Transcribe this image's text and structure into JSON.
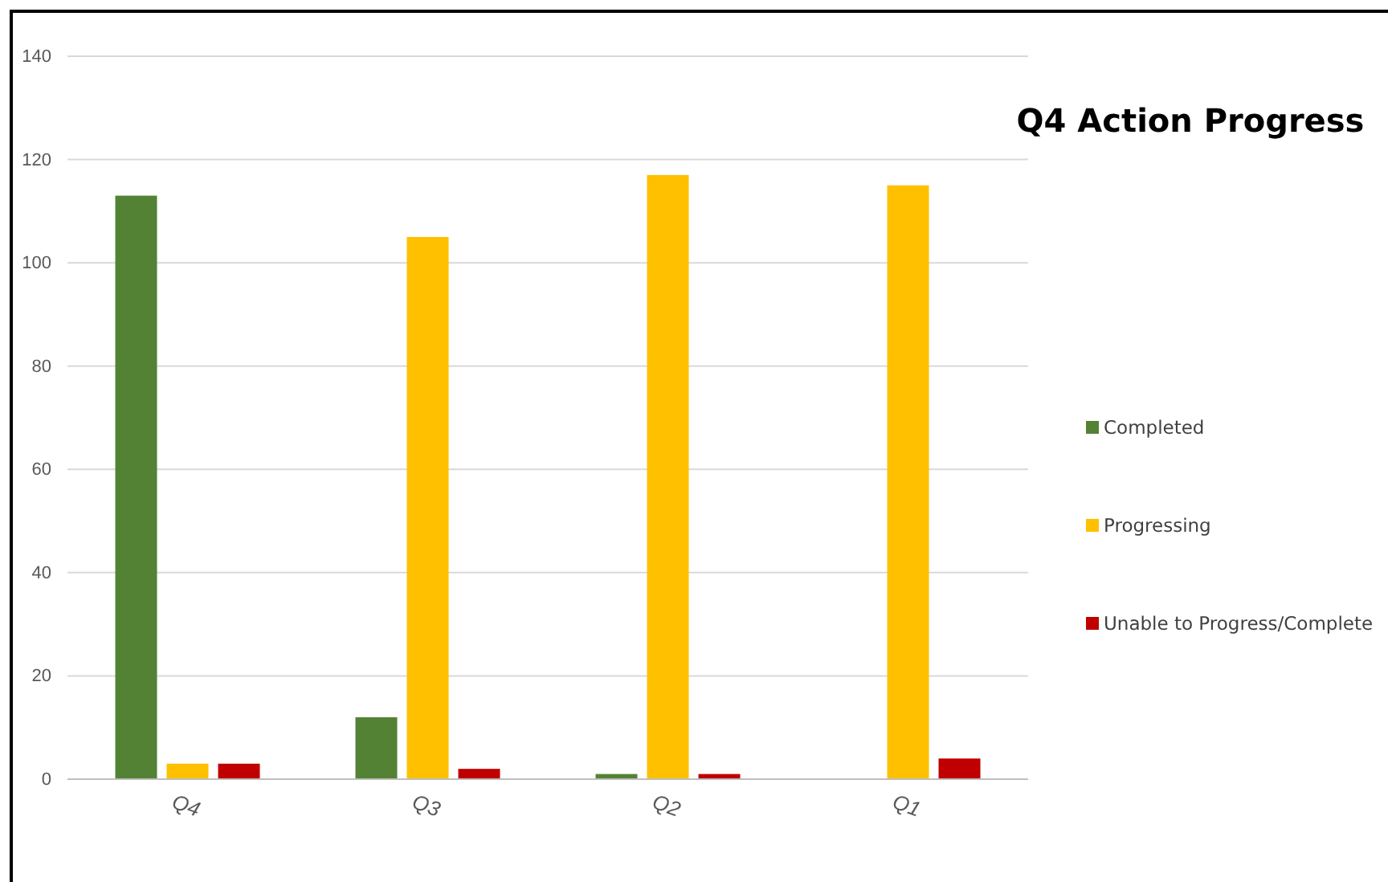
{
  "chart_data": {
    "type": "bar",
    "title": "Q4 Action Progress",
    "categories": [
      "Q4",
      "Q3",
      "Q2",
      "Q1"
    ],
    "series": [
      {
        "name": "Completed",
        "color": "#548235",
        "values": [
          113,
          12,
          1,
          0
        ]
      },
      {
        "name": "Progressing",
        "color": "#ffc000",
        "values": [
          3,
          105,
          117,
          115
        ]
      },
      {
        "name": "Unable to Progress/Complete",
        "color": "#c00000",
        "values": [
          3,
          2,
          1,
          4
        ]
      }
    ],
    "ylim": [
      0,
      140
    ],
    "yticks": [
      0,
      20,
      40,
      60,
      80,
      100,
      120,
      140
    ],
    "grid": "y",
    "legend": "right"
  }
}
